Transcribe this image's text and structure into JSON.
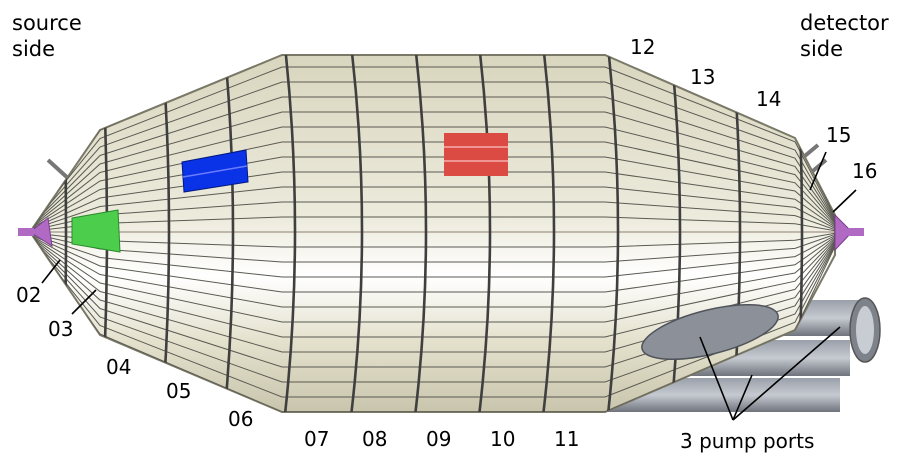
{
  "labels": {
    "source_side_line1": "source",
    "source_side_line2": "side",
    "detector_side_line1": "detector",
    "detector_side_line2": "side",
    "pump_ports": "3 pump ports"
  },
  "section_numbers": [
    "02",
    "03",
    "04",
    "05",
    "06",
    "07",
    "08",
    "09",
    "10",
    "11",
    "12",
    "13",
    "14",
    "15",
    "16"
  ],
  "colors": {
    "vessel_fill": "#e9e6d2",
    "vessel_shade": "#cfcbb3",
    "frame_line": "#3f3f3f",
    "green_panel": "#4ccd4c",
    "blue_panel": "#0a32e6",
    "red_panel": "#dc4a44",
    "flange_purple": "#b06ac4",
    "pipe_gray": "#8a8f99"
  }
}
